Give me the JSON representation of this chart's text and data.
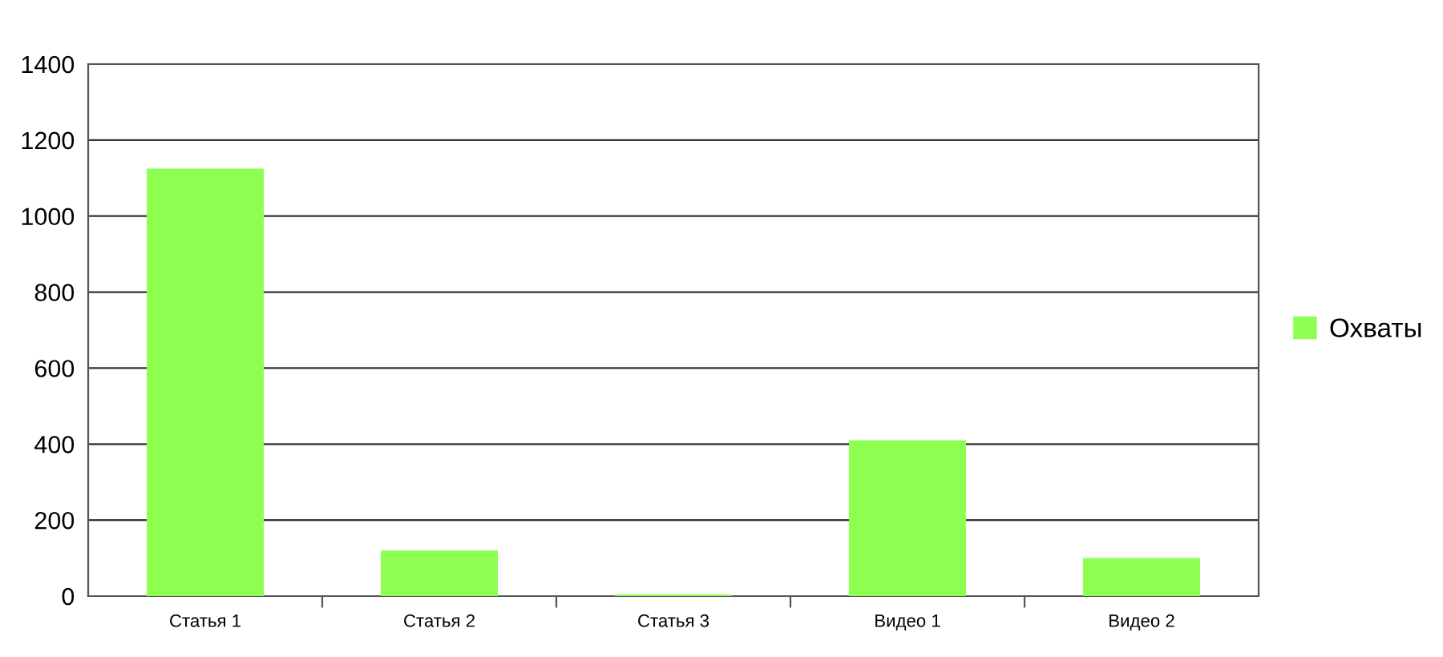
{
  "chart_data": {
    "type": "bar",
    "categories": [
      "Статья 1",
      "Статья 2",
      "Статья 3",
      "Видео 1",
      "Видео 2"
    ],
    "series": [
      {
        "name": "Охваты",
        "color": "#8cff50",
        "values": [
          1125,
          120,
          4,
          410,
          100
        ]
      }
    ],
    "ylim": [
      0,
      1400
    ],
    "yticks": [
      0,
      200,
      400,
      600,
      800,
      1000,
      1200,
      1400
    ],
    "grid": "y",
    "legend": "right"
  }
}
